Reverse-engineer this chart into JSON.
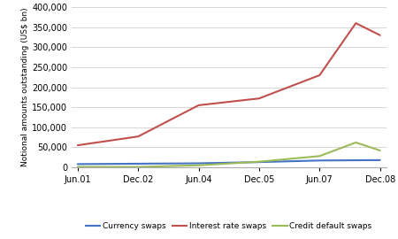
{
  "x_labels": [
    "Jun.01",
    "Dec.02",
    "Jun.04",
    "Dec.05",
    "Jun.07",
    "Dec.08"
  ],
  "x_positions": [
    0,
    1,
    2,
    3,
    4,
    5
  ],
  "currency_swaps": [
    8000,
    9000,
    10000,
    13000,
    17000,
    18000
  ],
  "interest_rate_swaps": [
    55000,
    77000,
    155000,
    172000,
    230000,
    360000,
    330000
  ],
  "credit_default_swaps": [
    1000,
    1000,
    5000,
    14000,
    28000,
    62000,
    42000
  ],
  "ir_x": [
    0,
    1,
    2,
    3,
    4,
    4.6,
    5
  ],
  "cds_x": [
    0,
    1,
    2,
    3,
    4,
    4.6,
    5
  ],
  "ylim": [
    0,
    400000
  ],
  "yticks": [
    0,
    50000,
    100000,
    150000,
    200000,
    250000,
    300000,
    350000,
    400000
  ],
  "ylabel": "Notional amounts outstanding (US$ bn)",
  "line_colors": {
    "currency_swaps": "#4472c4",
    "interest_rate_swaps": "#c0504d",
    "credit_default_swaps": "#9bbb59"
  },
  "legend_labels": [
    "Currency swaps",
    "Interest rate swaps",
    "Credit default swaps"
  ],
  "bg_color": "#ffffff",
  "grid_color": "#d0d0d0"
}
